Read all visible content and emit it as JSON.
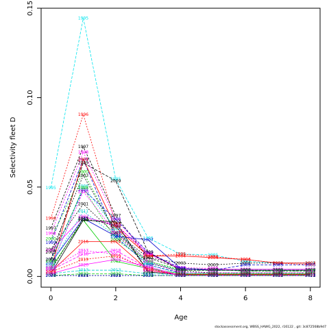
{
  "chart_data": {
    "type": "line",
    "xlabel": "Age",
    "ylabel": "Selectivity fleet D",
    "x": [
      0,
      1,
      2,
      3,
      4,
      5,
      6,
      7,
      8
    ],
    "xlim": [
      -0.3,
      8.3
    ],
    "ylim": [
      -0.006,
      0.15
    ],
    "xticks": [
      0,
      2,
      4,
      6,
      8
    ],
    "yticks": [
      0.0,
      0.05,
      0.1,
      0.15
    ],
    "ytick_labels": [
      "0.00",
      "0.05",
      "0.10",
      "0.15"
    ],
    "grid": false,
    "footnote": "stockassessment.org, WBSS_HAWG_2022, r16122 , git: 3c872568b9d7",
    "series": [
      {
        "name": "1995",
        "color": "#00e5ee",
        "dash": "4,2",
        "values": [
          0.0495,
          0.1445,
          0.0545,
          0.0215,
          0.0125,
          0.012,
          0.0085,
          0.0075,
          0.0075
        ]
      },
      {
        "name": "1996",
        "color": "#ff0000",
        "dash": "2,2",
        "values": [
          0.0325,
          0.0905,
          0.0295,
          0.0115,
          0.0125,
          0.011,
          0.0095,
          0.0075,
          0.0065
        ]
      },
      {
        "name": "1997",
        "color": "#000000",
        "dash": "3,2",
        "values": [
          0.027,
          0.0725,
          0.034,
          0.0105,
          0.0045,
          0.004,
          0.003,
          0.003,
          0.003
        ]
      },
      {
        "name": "1998",
        "color": "#ff00ff",
        "dash": "2,2",
        "values": [
          0.024,
          0.0695,
          0.032,
          0.0125,
          0.005,
          0.0045,
          0.0035,
          0.0035,
          0.0035
        ]
      },
      {
        "name": "1999",
        "color": "#0000cd",
        "dash": "4,2",
        "values": [
          0.019,
          0.0655,
          0.022,
          0.0065,
          0.002,
          0.002,
          0.002,
          0.002,
          0.002
        ]
      },
      {
        "name": "2000",
        "color": "#00cd00",
        "dash": "2,2",
        "values": [
          0.021,
          0.0585,
          0.0245,
          0.0085,
          0.004,
          0.004,
          0.003,
          0.003,
          0.003
        ]
      },
      {
        "name": "2001",
        "color": "#000000",
        "dash": "2,2",
        "values": [
          0.015,
          0.0405,
          0.0235,
          0.0075,
          0.003,
          0.002,
          0.002,
          0.002,
          0.002
        ]
      },
      {
        "name": "2002",
        "color": "#ff00ff",
        "dash": "",
        "values": [
          0.0145,
          0.0335,
          0.0285,
          0.013,
          0.004,
          0.004,
          0.004,
          0.004,
          0.004
        ]
      },
      {
        "name": "2003",
        "color": "#000000",
        "dash": "2,2",
        "values": [
          0.0135,
          0.0565,
          0.0245,
          0.0105,
          0.0075,
          0.0065,
          0.0075,
          0.0075,
          0.0075
        ]
      },
      {
        "name": "2004",
        "color": "#ff0000",
        "dash": "",
        "values": [
          0.0045,
          0.0655,
          0.0275,
          0.0115,
          0.0115,
          0.0105,
          0.0095,
          0.0075,
          0.0075
        ]
      },
      {
        "name": "2005",
        "color": "#0000cd",
        "dash": "4,2",
        "values": [
          0.0095,
          0.0485,
          0.032,
          0.0135,
          0.0045,
          0.0035,
          0.0065,
          0.0065,
          0.0065
        ]
      },
      {
        "name": "2006",
        "color": "#00cdcd",
        "dash": "2,2",
        "values": [
          0.0045,
          0.0505,
          0.0265,
          0.0075,
          0.0035,
          0.0035,
          0.0035,
          0.0035,
          0.0035
        ]
      },
      {
        "name": "2007",
        "color": "#0000cd",
        "dash": "",
        "values": [
          0.0075,
          0.0325,
          0.0225,
          0.0205,
          0.0045,
          0.0035,
          0.0035,
          0.0035,
          0.0035
        ]
      },
      {
        "name": "2008",
        "color": "#00cd00",
        "dash": "2,2",
        "values": [
          0.0085,
          0.0495,
          0.0205,
          0.0085,
          0.0035,
          0.0035,
          0.0035,
          0.0035,
          0.0035
        ]
      },
      {
        "name": "2009",
        "color": "#000000",
        "dash": "4,2",
        "values": [
          0.0095,
          0.0635,
          0.0535,
          0.0135,
          0.0035,
          0.0035,
          0.0035,
          0.0035,
          0.0035
        ]
      },
      {
        "name": "2010",
        "color": "#ff00ff",
        "dash": "2,2",
        "values": [
          0.0055,
          0.0475,
          0.0245,
          0.0085,
          0.002,
          0.002,
          0.002,
          0.002,
          0.002
        ]
      },
      {
        "name": "2011",
        "color": "#00cdcd",
        "dash": "2,2",
        "values": [
          0.0065,
          0.0365,
          0.0225,
          0.0065,
          0.0015,
          0.0015,
          0.0015,
          0.0015,
          0.0015
        ]
      },
      {
        "name": "2012",
        "color": "#00cd00",
        "dash": "",
        "values": [
          0.0045,
          0.0315,
          0.0085,
          0.0045,
          0.0015,
          0.0015,
          0.0015,
          0.0015,
          0.0015
        ]
      },
      {
        "name": "2013",
        "color": "#00cdcd",
        "dash": "4,2",
        "values": [
          0.0015,
          0.0035,
          0.0035,
          0.0015,
          0.001,
          0.001,
          0.001,
          0.001,
          0.001
        ]
      },
      {
        "name": "2014",
        "color": "#000000",
        "dash": "",
        "values": [
          0.0015,
          0.0315,
          0.0305,
          0.0025,
          0.001,
          0.001,
          0.001,
          0.001,
          0.001
        ]
      },
      {
        "name": "2015",
        "color": "#000000",
        "dash": "2,2",
        "values": [
          0.0035,
          0.0325,
          0.0285,
          0.0025,
          0.001,
          0.001,
          0.001,
          0.001,
          0.001
        ]
      },
      {
        "name": "2016",
        "color": "#ff0000",
        "dash": "",
        "values": [
          0.0025,
          0.0195,
          0.0195,
          0.0035,
          0.001,
          0.001,
          0.001,
          0.001,
          0.001
        ]
      },
      {
        "name": "2017",
        "color": "#ff00ff",
        "dash": "2,2",
        "values": [
          0.0045,
          0.0145,
          0.0125,
          0.0035,
          0.0005,
          0.0005,
          0.0005,
          0.0005,
          0.0005
        ]
      },
      {
        "name": "2018",
        "color": "#ff00ff",
        "dash": "4,2",
        "values": [
          0.0035,
          0.0125,
          0.0145,
          0.0045,
          0.0005,
          0.0005,
          0.0005,
          0.0005,
          0.0005
        ]
      },
      {
        "name": "2019",
        "color": "#ff0000",
        "dash": "2,2",
        "values": [
          0.0025,
          0.0095,
          0.0115,
          0.0045,
          0.0005,
          0.0005,
          0.0005,
          0.0005,
          0.0005
        ]
      },
      {
        "name": "2020",
        "color": "#ff00ff",
        "dash": "",
        "values": [
          0.0015,
          0.0065,
          0.0095,
          0.0055,
          0.0005,
          0.0005,
          0.0005,
          0.0005,
          0.0005
        ]
      },
      {
        "name": "2021",
        "color": "#000000",
        "dash": "2,2",
        "values": [
          0.0005,
          0.0005,
          0.0005,
          0.0005,
          0.0005,
          0.0005,
          0.0005,
          0.0005,
          0.0005
        ]
      },
      {
        "name": "2022",
        "color": "#00cd00",
        "dash": "4,2",
        "values": [
          0.0005,
          0.0015,
          0.0015,
          0.0005,
          0.0005,
          0.0005,
          0.0005,
          0.0005,
          0.0005
        ]
      },
      {
        "name": "2023",
        "color": "#0000cd",
        "dash": "2,2",
        "values": [
          0.0005,
          0.0005,
          0.0005,
          0.0005,
          0.0005,
          0.0005,
          0.0005,
          0.0005,
          0.0005
        ]
      }
    ]
  }
}
